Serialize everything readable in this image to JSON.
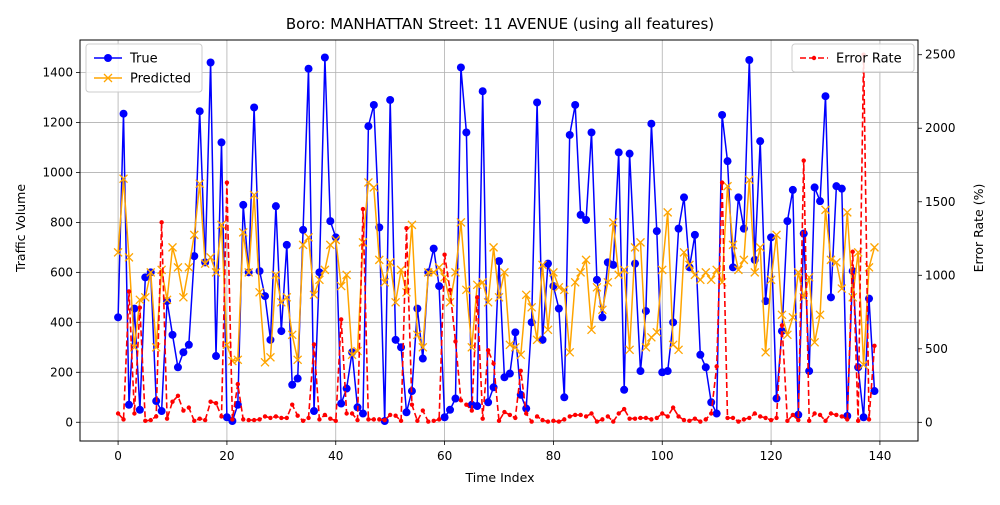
{
  "chart_data": {
    "type": "line",
    "title": "Boro: MANHATTAN Street: 11 AVENUE (using all features)",
    "xlabel": "Time Index",
    "ylabel": "Traffic Volume",
    "y2label": "Error Rate (%)",
    "xlim": [
      -7,
      147
    ],
    "ylim": [
      -75,
      1530
    ],
    "y2lim": [
      -127,
      2600
    ],
    "xticks": [
      0,
      20,
      40,
      60,
      80,
      100,
      120,
      140
    ],
    "yticks": [
      0,
      200,
      400,
      600,
      800,
      1000,
      1200,
      1400
    ],
    "y2ticks": [
      0,
      500,
      1000,
      1500,
      2000,
      2500
    ],
    "grid": true,
    "legend_left_position": "upper-left",
    "legend_right_position": "upper-right",
    "series": [
      {
        "name": "True",
        "axis": "left",
        "color": "#0000ff",
        "style": "solid",
        "marker": "circle",
        "values": [
          420,
          1235,
          70,
          455,
          50,
          580,
          600,
          85,
          45,
          485,
          350,
          220,
          280,
          310,
          665,
          1245,
          640,
          1440,
          265,
          1120,
          20,
          5,
          70,
          870,
          600,
          1260,
          605,
          505,
          330,
          865,
          365,
          710,
          150,
          175,
          770,
          1415,
          45,
          600,
          1460,
          805,
          740,
          75,
          135,
          280,
          60,
          35,
          1185,
          1270,
          780,
          5,
          1290,
          330,
          300,
          40,
          125,
          455,
          255,
          600,
          695,
          545,
          20,
          50,
          95,
          1420,
          1160,
          70,
          65,
          1325,
          80,
          140,
          645,
          180,
          195,
          360,
          110,
          55,
          400,
          1280,
          330,
          635,
          545,
          455,
          100,
          1150,
          1270,
          830,
          810,
          1160,
          570,
          420,
          640,
          630,
          1080,
          130,
          1075,
          635,
          205,
          445,
          1195,
          765,
          200,
          205,
          400,
          775,
          900,
          620,
          750,
          270,
          220,
          80,
          35,
          1230,
          1045,
          620,
          900,
          775,
          1450,
          650,
          1125,
          485,
          740,
          95,
          365,
          805,
          930,
          30,
          755,
          205,
          940,
          885,
          1305,
          500,
          945,
          935,
          25,
          605,
          220,
          20,
          495,
          125
        ]
      },
      {
        "name": "Predicted",
        "axis": "left",
        "color": "#ffa500",
        "style": "solid",
        "marker": "x",
        "values": [
          680,
          975,
          660,
          300,
          490,
          500,
          600,
          300,
          610,
          490,
          700,
          620,
          500,
          620,
          750,
          955,
          635,
          660,
          600,
          790,
          310,
          245,
          250,
          760,
          600,
          910,
          520,
          240,
          260,
          590,
          480,
          500,
          350,
          250,
          710,
          740,
          510,
          570,
          610,
          710,
          730,
          545,
          590,
          270,
          285,
          720,
          960,
          940,
          650,
          560,
          640,
          480,
          610,
          520,
          790,
          350,
          300,
          600,
          600,
          620,
          580,
          480,
          600,
          800,
          530,
          300,
          550,
          560,
          480,
          700,
          500,
          600,
          310,
          300,
          270,
          510,
          460,
          330,
          630,
          370,
          600,
          540,
          530,
          280,
          560,
          600,
          650,
          370,
          540,
          450,
          560,
          800,
          590,
          610,
          290,
          700,
          720,
          300,
          340,
          360,
          610,
          840,
          310,
          290,
          680,
          630,
          590,
          570,
          600,
          570,
          610,
          560,
          945,
          710,
          610,
          650,
          970,
          600,
          700,
          280,
          570,
          750,
          430,
          350,
          420,
          600,
          500,
          580,
          320,
          430,
          850,
          650,
          640,
          535,
          840,
          500,
          680,
          230,
          620,
          700
        ]
      },
      {
        "name": "Error Rate",
        "axis": "right",
        "color": "#ff0000",
        "style": "dashed",
        "marker": "dot",
        "values": [
          60,
          20,
          890,
          60,
          780,
          10,
          15,
          40,
          1360,
          25,
          140,
          180,
          80,
          100,
          10,
          25,
          15,
          140,
          130,
          40,
          1630,
          20,
          260,
          20,
          15,
          15,
          20,
          40,
          30,
          40,
          30,
          30,
          120,
          45,
          10,
          30,
          530,
          20,
          50,
          25,
          10,
          700,
          60,
          60,
          15,
          1450,
          20,
          20,
          20,
          15,
          50,
          45,
          10,
          1320,
          120,
          10,
          80,
          5,
          10,
          20,
          1140,
          900,
          550,
          150,
          120,
          80,
          850,
          25,
          490,
          400,
          10,
          70,
          50,
          30,
          350,
          60,
          5,
          40,
          15,
          5,
          10,
          5,
          20,
          40,
          50,
          50,
          40,
          60,
          5,
          20,
          40,
          5,
          60,
          90,
          25,
          25,
          30,
          30,
          20,
          30,
          60,
          40,
          100,
          40,
          15,
          10,
          25,
          5,
          20,
          60,
          380,
          1630,
          30,
          30,
          5,
          20,
          30,
          60,
          40,
          30,
          15,
          30,
          660,
          10,
          50,
          15,
          1780,
          10,
          60,
          50,
          10,
          60,
          50,
          40,
          20,
          1160,
          10,
          2500,
          20,
          520
        ]
      }
    ]
  }
}
